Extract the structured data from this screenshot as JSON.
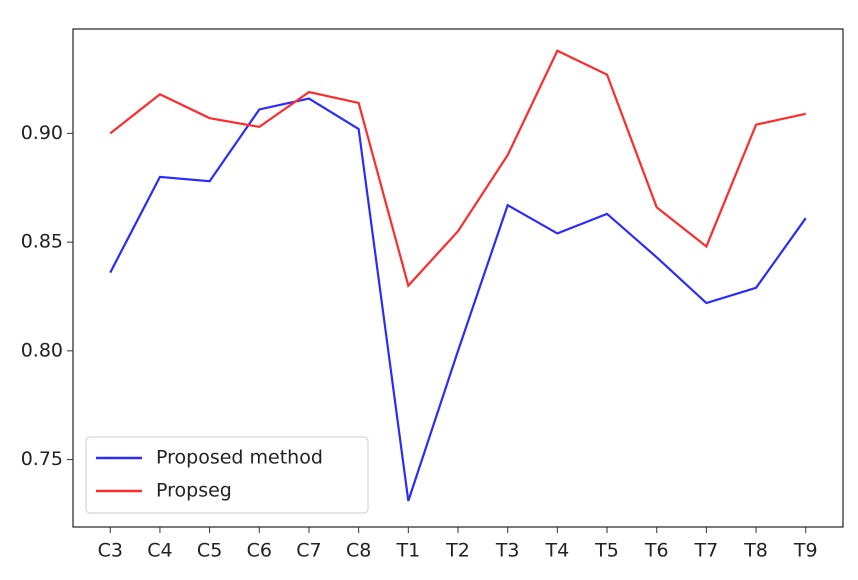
{
  "chart_data": {
    "type": "line",
    "categories": [
      "C3",
      "C4",
      "C5",
      "C6",
      "C7",
      "C8",
      "T1",
      "T2",
      "T3",
      "T4",
      "T5",
      "T6",
      "T7",
      "T8",
      "T9"
    ],
    "series": [
      {
        "name": "Proposed method",
        "color": "#2b2bff",
        "values": [
          0.836,
          0.88,
          0.878,
          0.911,
          0.916,
          0.902,
          0.731,
          0.8,
          0.867,
          0.854,
          0.863,
          0.843,
          0.822,
          0.829,
          0.861
        ]
      },
      {
        "name": "Propseg",
        "color": "#ff2b2b",
        "values": [
          0.9,
          0.918,
          0.907,
          0.903,
          0.919,
          0.914,
          0.83,
          0.855,
          0.89,
          0.938,
          0.927,
          0.866,
          0.848,
          0.904,
          0.909
        ]
      }
    ],
    "ylim": [
      0.719,
      0.948
    ],
    "yticks": [
      {
        "value": 0.9,
        "label": "0.90"
      },
      0.85,
      {
        "value": 0.8,
        "label": "0.80"
      },
      0.75
    ],
    "grid": false,
    "legend": "lower left"
  }
}
